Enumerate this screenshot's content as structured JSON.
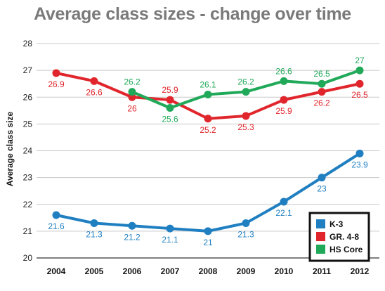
{
  "chart_data": {
    "type": "line",
    "title": "Average class sizes - change over time",
    "ylabel": "Average class size",
    "xlabel": "",
    "categories": [
      "2004",
      "2005",
      "2006",
      "2007",
      "2008",
      "2009",
      "2010",
      "2011",
      "2012"
    ],
    "ylim": [
      20,
      28
    ],
    "yticks": [
      20,
      21,
      22,
      23,
      24,
      25,
      26,
      27,
      28
    ],
    "grid": "horizontal",
    "legend_position": "bottom-right",
    "series": [
      {
        "name": "K-3",
        "color": "#1f7fc1",
        "values": [
          21.6,
          21.3,
          21.2,
          21.1,
          21.0,
          21.3,
          22.1,
          23.0,
          23.9
        ],
        "labels": [
          "21.6",
          "21.3",
          "21.2",
          "21.1",
          "21",
          "21.3",
          "22.1",
          "23",
          "23.9"
        ]
      },
      {
        "name": "GR. 4-8",
        "color": "#e0262c",
        "values": [
          26.9,
          26.6,
          26.0,
          25.9,
          25.2,
          25.3,
          25.9,
          26.2,
          26.5
        ],
        "labels": [
          "26.9",
          "26.6",
          "26",
          "25.9",
          "25.2",
          "25.3",
          "25.9",
          "26.2",
          "26.5"
        ]
      },
      {
        "name": "HS Core",
        "color": "#21a95a",
        "values": [
          null,
          null,
          26.2,
          25.6,
          26.1,
          26.2,
          26.6,
          26.5,
          27.0
        ],
        "labels": [
          null,
          null,
          "26.2",
          "25.6",
          "26.1",
          "26.2",
          "26.6",
          "26.5",
          "27"
        ]
      }
    ]
  }
}
